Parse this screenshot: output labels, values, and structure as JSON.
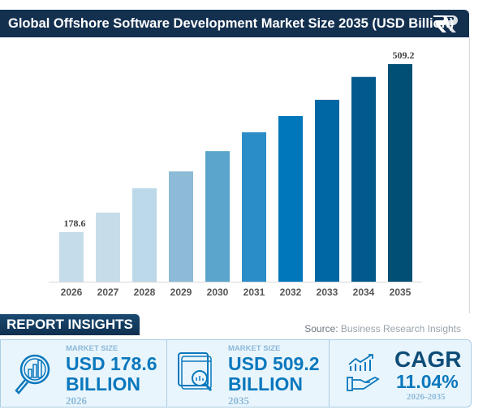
{
  "header": {
    "title": "Global Offshore Software Development Market Size 2035 (USD Billion)"
  },
  "chart_data": {
    "type": "bar",
    "title": "Global Offshore Software Development Market Size 2035 (USD Billion)",
    "categories": [
      "2026",
      "2027",
      "2028",
      "2029",
      "2030",
      "2031",
      "2032",
      "2033",
      "2034",
      "2035"
    ],
    "values": [
      178.6,
      217,
      265,
      298,
      338,
      375,
      407,
      439,
      484,
      509.2
    ],
    "data_labels": {
      "0": "178.6",
      "9": "509.2"
    },
    "colors": [
      "#c5dcea",
      "#c6dde9",
      "#bcd9ea",
      "#8dbad7",
      "#5ba4cc",
      "#2a8dc8",
      "#0076bb",
      "#0067a5",
      "#025a8c",
      "#024f74"
    ],
    "xlabel": "",
    "ylabel": "",
    "ylim": [
      81,
      520
    ],
    "grid": false
  },
  "insights": {
    "title": "REPORT INSIGHTS",
    "source_label": "Source:",
    "source_name": "Business Research Insights",
    "items": [
      {
        "label": "MARKET SIZE",
        "value": "USD 178.6",
        "unit": "BILLION",
        "year": "2026"
      },
      {
        "label": "MARKET SIZE",
        "value": "USD 509.2",
        "unit": "BILLION",
        "year": "2035"
      },
      {
        "label": "CAGR",
        "value": "11.04%",
        "year": "2026-2035"
      }
    ]
  }
}
